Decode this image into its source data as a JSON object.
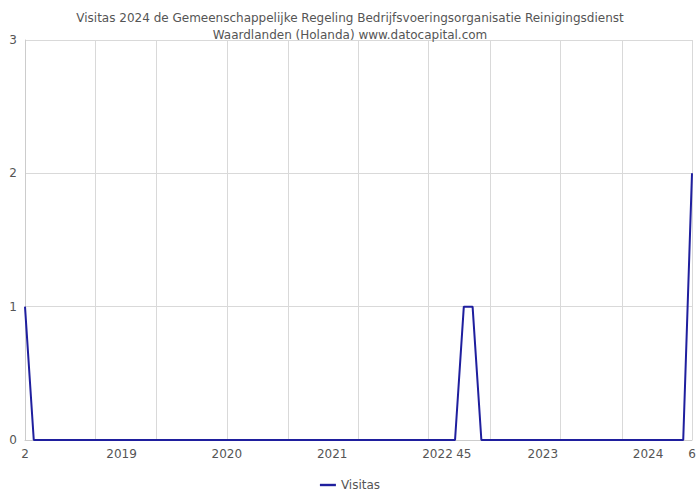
{
  "chart_data": {
    "type": "line",
    "title": "Visitas 2024 de Gemeenschappelijke Regeling Bedrijfsvoeringsorganisatie Reinigingsdienst\nWaardlanden (Holanda) www.datocapital.com",
    "categories": [
      "2",
      null,
      null,
      null,
      null,
      null,
      null,
      null,
      null,
      null,
      null,
      "2019",
      null,
      null,
      null,
      null,
      null,
      null,
      null,
      null,
      null,
      null,
      null,
      "2020",
      null,
      null,
      null,
      null,
      null,
      null,
      null,
      null,
      null,
      null,
      null,
      "2021",
      null,
      null,
      null,
      null,
      null,
      null,
      null,
      null,
      null,
      null,
      null,
      "2022",
      null,
      null,
      "45",
      null,
      null,
      null,
      null,
      null,
      null,
      null,
      null,
      "2023",
      null,
      null,
      null,
      null,
      null,
      null,
      null,
      null,
      null,
      null,
      null,
      "2024",
      null,
      null,
      null,
      null,
      "6"
    ],
    "series": [
      {
        "name": "Visitas",
        "color": "#1f1f9e",
        "values": [
          1,
          0,
          0,
          0,
          0,
          0,
          0,
          0,
          0,
          0,
          0,
          0,
          0,
          0,
          0,
          0,
          0,
          0,
          0,
          0,
          0,
          0,
          0,
          0,
          0,
          0,
          0,
          0,
          0,
          0,
          0,
          0,
          0,
          0,
          0,
          0,
          0,
          0,
          0,
          0,
          0,
          0,
          0,
          0,
          0,
          0,
          0,
          0,
          0,
          0,
          1,
          1,
          0,
          0,
          0,
          0,
          0,
          0,
          0,
          0,
          0,
          0,
          0,
          0,
          0,
          0,
          0,
          0,
          0,
          0,
          0,
          0,
          0,
          0,
          0,
          0,
          2
        ]
      }
    ],
    "ylim": [
      0,
      3
    ],
    "yticks": [
      0,
      1,
      2,
      3
    ],
    "grid": true,
    "legend": "bottom"
  }
}
